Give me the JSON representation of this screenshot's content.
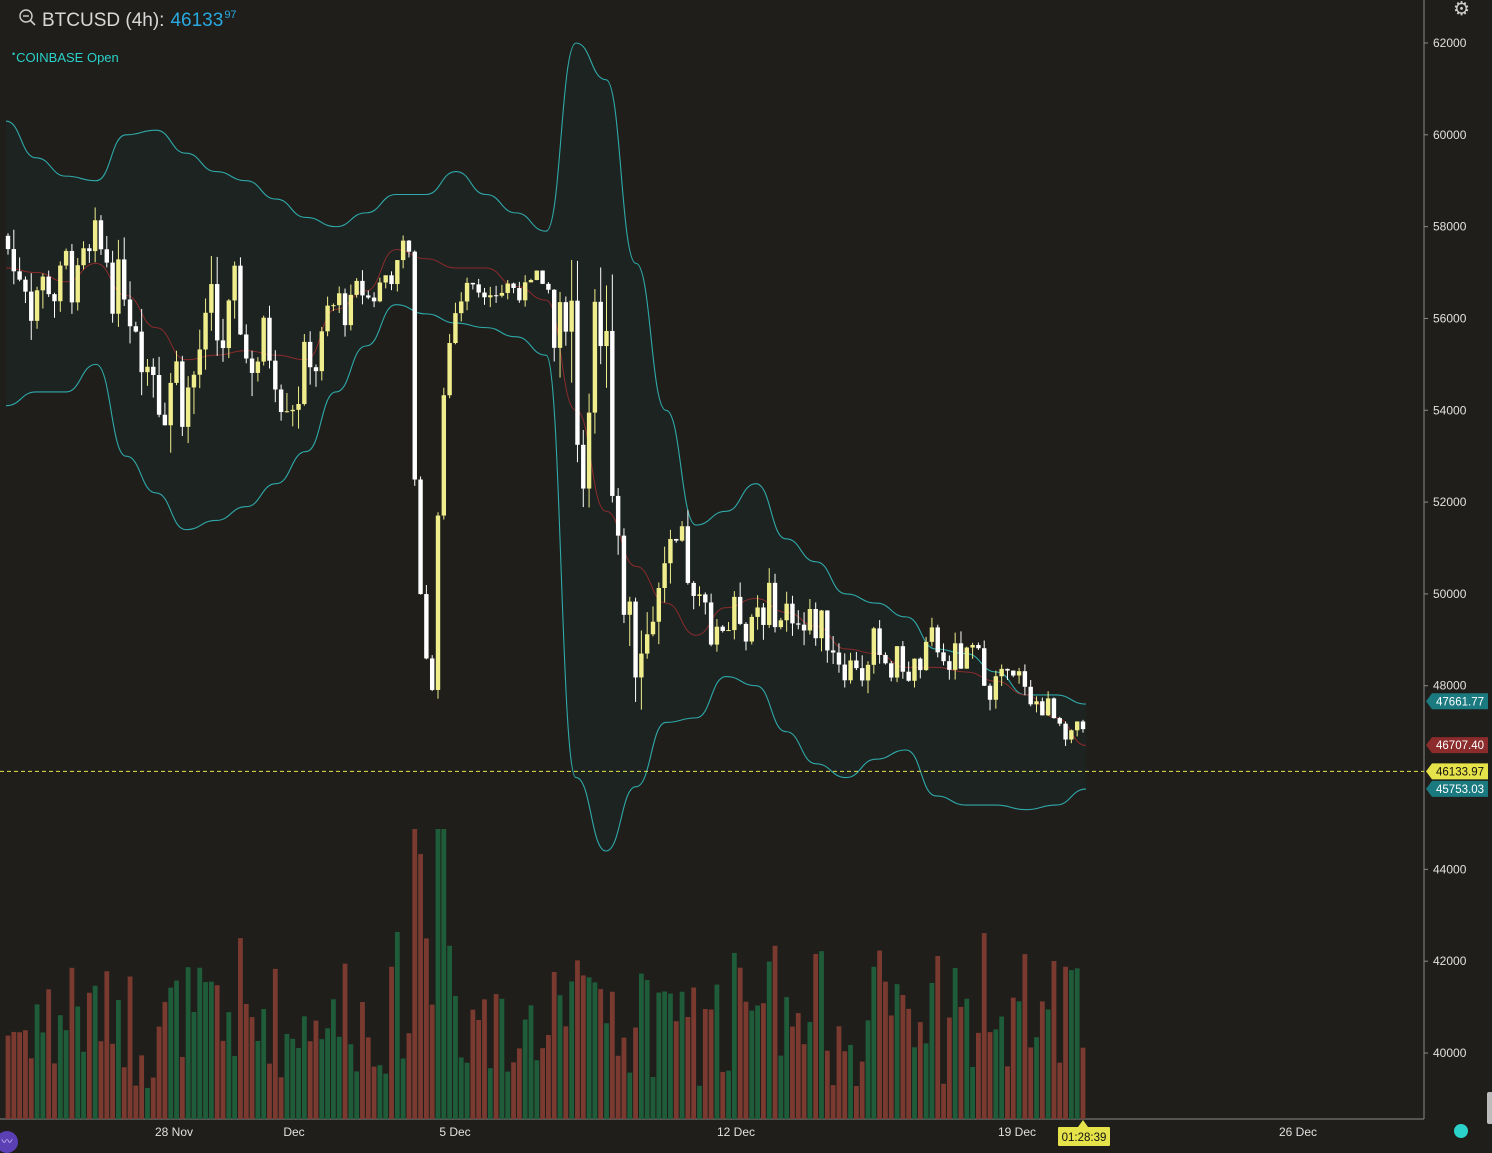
{
  "header": {
    "symbol": "BTCUSD (4h):",
    "price": "46133",
    "price_decimals": "97",
    "exchange_status": "COINBASE Open",
    "search_icon": "magnifier-icon",
    "settings_icon": "gear-icon"
  },
  "colors": {
    "background": "#1f1e1a",
    "bull_candle": "#f0ee8c",
    "bear_candle": "#ffffff",
    "band_line": "#2fa9a9",
    "band_fill": "#1c2321",
    "basis_line": "#8b2b2b",
    "vol_up": "#1e5c3a",
    "vol_down": "#7a3a30",
    "current_price": "#e5e24a",
    "accent_price": "#29a8e0"
  },
  "chart_data": {
    "type": "candlestick",
    "title": "BTCUSD (4h):",
    "ylim": [
      38800,
      63000
    ],
    "y_ticks": [
      "62000",
      "60000",
      "58000",
      "56000",
      "54000",
      "52000",
      "50000",
      "48000",
      "44000",
      "42000",
      "40000"
    ],
    "x_ticks": [
      "28 Nov",
      "Dec",
      "5 Dec",
      "12 Dec",
      "19 Dec",
      "26 Dec"
    ],
    "price_labels": [
      {
        "text": "47661.77",
        "value": 47661.77,
        "color": "#1a7a80"
      },
      {
        "text": "46707.40",
        "value": 46707.4,
        "color": "#8b2b2b"
      },
      {
        "text": "46133.97",
        "value": 46133.97,
        "color": "#e5e24a"
      },
      {
        "text": "45753.03",
        "value": 45753.03,
        "color": "#1a7a80"
      }
    ],
    "countdown": "01:28:39",
    "current_price": 46133.97,
    "series": [
      {
        "name": "Bollinger upper",
        "values": [
          60300,
          59500,
          59100,
          59000,
          60000,
          60100,
          59600,
          59200,
          59000,
          58600,
          58200,
          58000,
          58300,
          58700,
          58700,
          59200,
          58700,
          58300,
          57900,
          62000,
          61200,
          57200,
          54000,
          51500,
          51800,
          52400,
          51200,
          50700,
          50000,
          49800,
          49500,
          48800,
          48700,
          48300,
          47800,
          47800,
          47600
        ]
      },
      {
        "name": "Bollinger basis",
        "values": [
          57100,
          57000,
          56800,
          57200,
          56500,
          55800,
          55100,
          55200,
          55300,
          55200,
          55100,
          56200,
          56600,
          57500,
          57300,
          57100,
          57100,
          56700,
          56400,
          54000,
          51800,
          50600,
          49800,
          49100,
          49700,
          49900,
          49600,
          49300,
          48800,
          48700,
          48400,
          48400,
          48300,
          48100,
          47800,
          47300,
          46700
        ]
      },
      {
        "name": "Bollinger lower",
        "values": [
          54100,
          54400,
          54400,
          55000,
          53000,
          52200,
          51400,
          51600,
          51900,
          52400,
          53100,
          54400,
          55400,
          56300,
          56100,
          55900,
          55800,
          55600,
          55200,
          46000,
          44400,
          45800,
          47200,
          47300,
          48200,
          48000,
          47000,
          46300,
          46000,
          46400,
          46600,
          45600,
          45400,
          45400,
          45300,
          45400,
          45750
        ]
      },
      {
        "name": "candles",
        "ohlc_count": 186
      }
    ]
  }
}
